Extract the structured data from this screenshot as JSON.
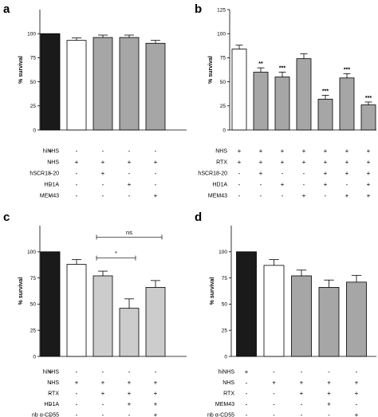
{
  "chart_data": [
    {
      "panel": "a",
      "type": "bar",
      "ylabel": "% survival",
      "ylim": [
        0,
        125
      ],
      "yticks": [
        0,
        25,
        50,
        75,
        100
      ],
      "values": [
        100,
        93,
        96,
        96,
        90
      ],
      "errors": [
        0,
        2.5,
        2.5,
        2.5,
        3
      ],
      "fills": [
        "#1a1a1a",
        "#ffffff",
        "#a6a6a6",
        "#a6a6a6",
        "#a6a6a6"
      ],
      "significance": [
        "",
        "",
        "",
        "",
        ""
      ],
      "rows": [
        {
          "label": "hiNHS",
          "marks": [
            "+",
            "-",
            "-",
            "-",
            "-"
          ]
        },
        {
          "label": "NHS",
          "marks": [
            "-",
            "+",
            "+",
            "+",
            "+"
          ]
        },
        {
          "label": "hSCR18-20",
          "marks": [
            "-",
            "-",
            "+",
            "-",
            "-"
          ]
        },
        {
          "label": "HD1A",
          "marks": [
            "-",
            "-",
            "-",
            "+",
            "-"
          ]
        },
        {
          "label": "MEM43",
          "marks": [
            "-",
            "-",
            "-",
            "-",
            "+"
          ]
        }
      ]
    },
    {
      "panel": "b",
      "type": "bar",
      "ylabel": "% survival",
      "ylim": [
        0,
        125
      ],
      "yticks": [
        0,
        25,
        50,
        75,
        100,
        125
      ],
      "values": [
        84,
        60,
        55,
        74,
        32,
        54,
        26
      ],
      "errors": [
        4,
        4.5,
        5,
        5,
        4,
        4.5,
        3
      ],
      "fills": [
        "#ffffff",
        "#a6a6a6",
        "#a6a6a6",
        "#a6a6a6",
        "#a6a6a6",
        "#a6a6a6",
        "#a6a6a6"
      ],
      "significance": [
        "",
        "**",
        "***",
        "",
        "***",
        "***",
        "***"
      ],
      "rows": [
        {
          "label": "NHS",
          "marks": [
            "+",
            "+",
            "+",
            "+",
            "+",
            "+",
            "+"
          ]
        },
        {
          "label": "RTX",
          "marks": [
            "+",
            "+",
            "+",
            "+",
            "+",
            "+",
            "+"
          ]
        },
        {
          "label": "hSCR18-20",
          "marks": [
            "-",
            "+",
            "-",
            "-",
            "+",
            "+",
            "+"
          ]
        },
        {
          "label": "HD1A",
          "marks": [
            "-",
            "-",
            "+",
            "-",
            "+",
            "-",
            "+"
          ]
        },
        {
          "label": "MEM43",
          "marks": [
            "-",
            "-",
            "-",
            "+",
            "-",
            "+",
            "+"
          ]
        }
      ]
    },
    {
      "panel": "c",
      "type": "bar",
      "ylabel": "% survival",
      "ylim": [
        0,
        125
      ],
      "yticks": [
        0,
        25,
        50,
        75,
        100
      ],
      "values": [
        100,
        88,
        77,
        46,
        66
      ],
      "errors": [
        0,
        4.5,
        4.5,
        9,
        6.5
      ],
      "fills": [
        "#1a1a1a",
        "#ffffff",
        "#cccccc",
        "#cccccc",
        "#cccccc"
      ],
      "significance": [
        "",
        "",
        "",
        "",
        ""
      ],
      "brackets": [
        {
          "from": 2,
          "to": 4,
          "text": "ns",
          "y": 114
        },
        {
          "from": 2,
          "to": 3,
          "text": "*",
          "y": 94
        }
      ],
      "rows": [
        {
          "label": "hiNHS",
          "marks": [
            "+",
            "-",
            "-",
            "-",
            "-"
          ]
        },
        {
          "label": "NHS",
          "marks": [
            "-",
            "+",
            "+",
            "+",
            "+"
          ]
        },
        {
          "label": "RTX",
          "marks": [
            "-",
            "-",
            "+",
            "+",
            "+"
          ]
        },
        {
          "label": "HD1A",
          "marks": [
            "-",
            "-",
            "-",
            "+",
            "+"
          ]
        },
        {
          "label": "nb α-CD55",
          "marks": [
            "-",
            "-",
            "-",
            "-",
            "+"
          ]
        }
      ]
    },
    {
      "panel": "d",
      "type": "bar",
      "ylabel": "% survival",
      "ylim": [
        0,
        125
      ],
      "yticks": [
        0,
        25,
        50,
        75,
        100
      ],
      "values": [
        100,
        87,
        77,
        66,
        71
      ],
      "errors": [
        0,
        5.5,
        5.5,
        7,
        6.5
      ],
      "fills": [
        "#1a1a1a",
        "#ffffff",
        "#a6a6a6",
        "#a6a6a6",
        "#a6a6a6"
      ],
      "significance": [
        "",
        "",
        "",
        "",
        ""
      ],
      "rows": [
        {
          "label": "hiNHS",
          "marks": [
            "+",
            "-",
            "-",
            "-",
            "-"
          ]
        },
        {
          "label": "NHS",
          "marks": [
            "-",
            "+",
            "+",
            "+",
            "+"
          ]
        },
        {
          "label": "RTX",
          "marks": [
            "-",
            "-",
            "+",
            "+",
            "+"
          ]
        },
        {
          "label": "MEM43",
          "marks": [
            "-",
            "-",
            "-",
            "+",
            "-"
          ]
        },
        {
          "label": "nb α-CD55",
          "marks": [
            "-",
            "-",
            "-",
            "-",
            "+"
          ]
        }
      ]
    }
  ]
}
